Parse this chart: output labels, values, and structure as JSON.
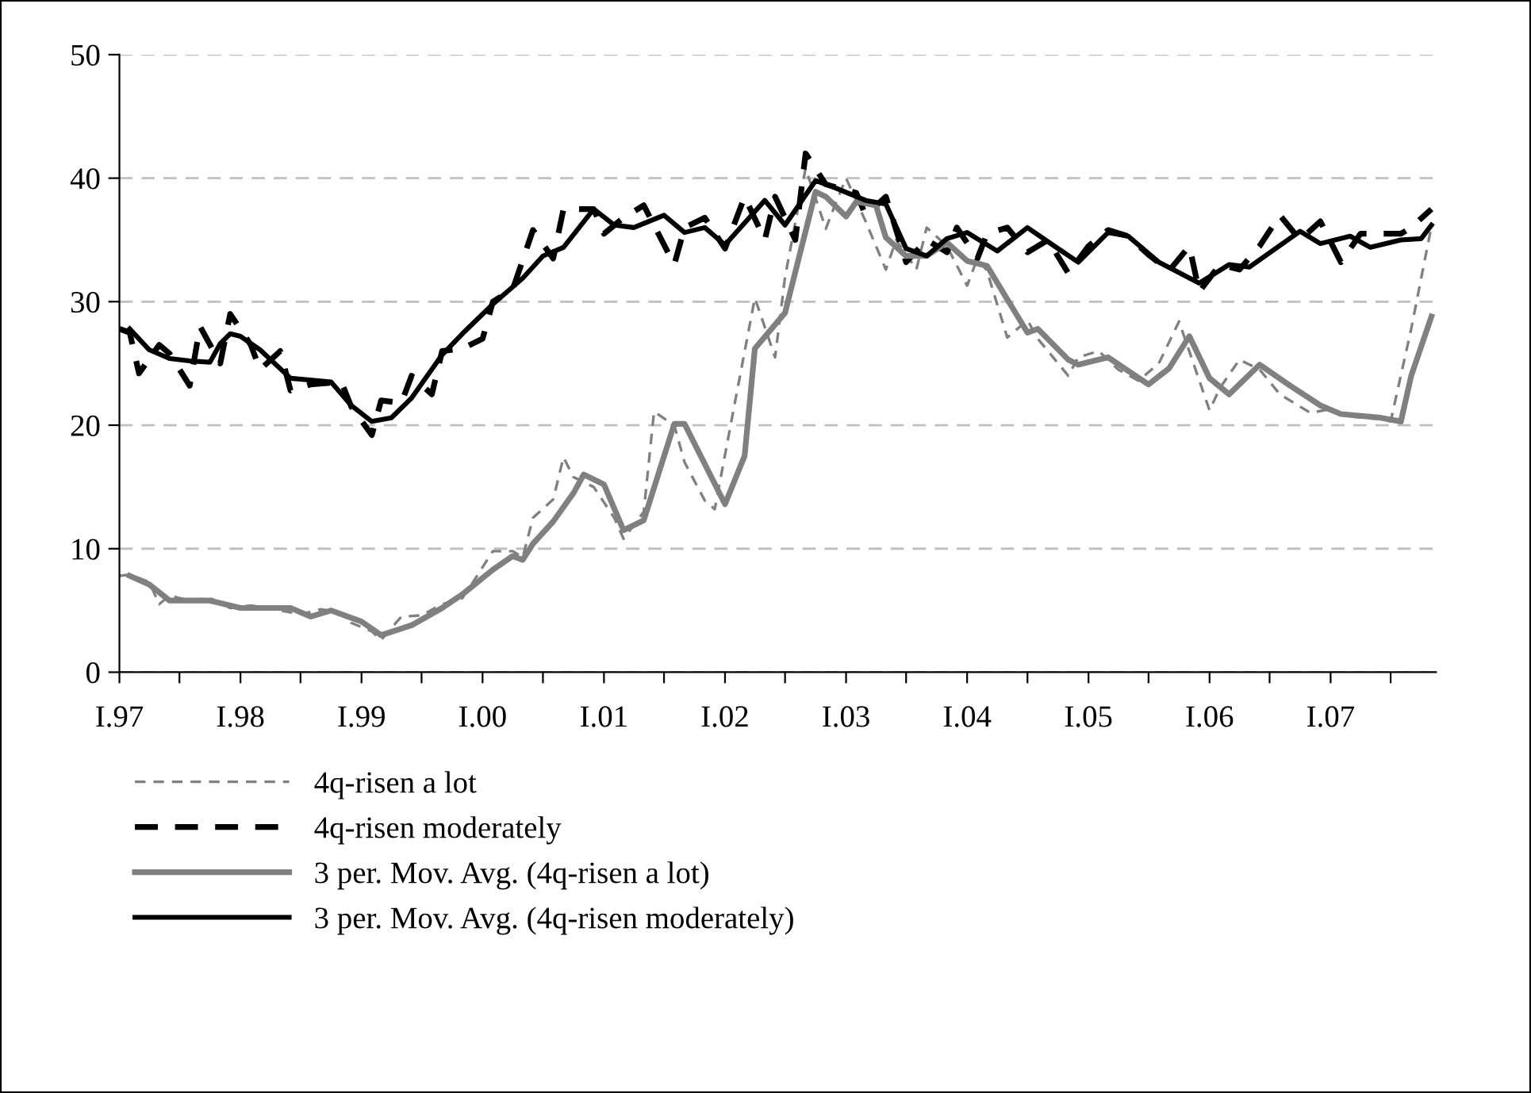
{
  "chart_data": {
    "type": "line",
    "ylim": [
      0,
      50
    ],
    "yticks": [
      0,
      10,
      20,
      30,
      40,
      50
    ],
    "xlim": [
      "1997-01-01",
      "2007-11-15"
    ],
    "xticks": [
      {
        "value": "1997-01",
        "label": "I.97"
      },
      {
        "value": "1997-07",
        "label": null
      },
      {
        "value": "1998-01",
        "label": "I.98"
      },
      {
        "value": "1998-07",
        "label": null
      },
      {
        "value": "1999-01",
        "label": "I.99"
      },
      {
        "value": "1999-07",
        "label": null
      },
      {
        "value": "2000-01",
        "label": "I.00"
      },
      {
        "value": "2000-07",
        "label": null
      },
      {
        "value": "2001-01",
        "label": "I.01"
      },
      {
        "value": "2001-07",
        "label": null
      },
      {
        "value": "2002-01",
        "label": "I.02"
      },
      {
        "value": "2002-07",
        "label": null
      },
      {
        "value": "2003-01",
        "label": "I.03"
      },
      {
        "value": "2003-07",
        "label": null
      },
      {
        "value": "2004-01",
        "label": "I.04"
      },
      {
        "value": "2004-07",
        "label": null
      },
      {
        "value": "2005-01",
        "label": "I.05"
      },
      {
        "value": "2005-07",
        "label": null
      },
      {
        "value": "2006-01",
        "label": "I.06"
      },
      {
        "value": "2006-07",
        "label": null
      },
      {
        "value": "2007-01",
        "label": "I.07"
      },
      {
        "value": "2007-07",
        "label": null
      }
    ],
    "grid": "y",
    "legend": "bottom",
    "series": [
      {
        "name": "4q-risen a lot",
        "color": "#808080",
        "line_style": "dashed",
        "x": [
          "1997-01",
          "1997-02",
          "1997-04",
          "1997-05",
          "1997-06",
          "1997-08",
          "1997-10",
          "1997-12",
          "1998-02",
          "1998-05",
          "1998-07",
          "1998-09",
          "1998-11",
          "1998-12",
          "1999-02",
          "1999-03",
          "1999-05",
          "1999-07",
          "1999-09",
          "1999-11",
          "1999-12",
          "2000-02",
          "2000-04",
          "2000-05",
          "2000-06",
          "2000-08",
          "2000-09",
          "2000-10",
          "2000-12",
          "2001-02",
          "2001-03",
          "2001-05",
          "2001-06",
          "2001-08",
          "2001-09",
          "2001-11",
          "2001-12",
          "2002-02",
          "2002-04",
          "2002-06",
          "2002-07",
          "2002-09",
          "2002-11",
          "2002-12",
          "2003-01",
          "2003-03",
          "2003-05",
          "2003-06",
          "2003-08",
          "2003-09",
          "2003-11",
          "2004-01",
          "2004-02",
          "2004-03",
          "2004-05",
          "2004-07",
          "2004-08",
          "2004-11",
          "2004-12",
          "2005-02",
          "2005-04",
          "2005-06",
          "2005-08",
          "2005-10",
          "2006-01",
          "2006-02",
          "2006-04",
          "2006-06",
          "2006-08",
          "2006-11",
          "2007-01",
          "2007-03",
          "2007-06",
          "2007-07",
          "2007-09",
          "2007-11"
        ],
        "values": [
          7.8,
          7.9,
          7.3,
          5.5,
          6.2,
          5.8,
          6.0,
          5.2,
          5.4,
          5.0,
          4.7,
          5.1,
          4.8,
          4.0,
          3.3,
          2.6,
          4.5,
          4.6,
          5.5,
          6.0,
          7.2,
          9.8,
          9.8,
          9.3,
          12.5,
          14.0,
          17.4,
          15.8,
          15.0,
          12.5,
          10.8,
          13.0,
          21.1,
          20.0,
          17.0,
          13.9,
          13.2,
          22.0,
          30.3,
          25.5,
          32.0,
          40.8,
          35.9,
          38.0,
          40.0,
          36.5,
          32.6,
          35.0,
          32.6,
          36.0,
          34.5,
          31.3,
          33.5,
          32.5,
          27.1,
          28.5,
          27.0,
          24.0,
          25.5,
          26.0,
          24.5,
          23.6,
          25.0,
          28.4,
          21.2,
          23.0,
          25.3,
          24.5,
          22.5,
          21.0,
          21.3,
          20.7,
          20.5,
          20.3,
          27.8,
          36.1
        ]
      },
      {
        "name": "4q-risen moderately",
        "color": "#000000",
        "line_style": "dashed",
        "x": [
          "1997-01",
          "1997-02",
          "1997-03",
          "1997-05",
          "1997-06",
          "1997-08",
          "1997-09",
          "1997-11",
          "1997-12",
          "1998-02",
          "1998-03",
          "1998-05",
          "1998-06",
          "1998-08",
          "1998-11",
          "1998-12",
          "1999-02",
          "1999-03",
          "1999-05",
          "1999-06",
          "1999-08",
          "1999-09",
          "1999-11",
          "2000-01",
          "2000-02",
          "2000-04",
          "2000-06",
          "2000-08",
          "2000-09",
          "2000-12",
          "2001-01",
          "2001-03",
          "2001-05",
          "2001-08",
          "2001-09",
          "2001-11",
          "2002-01",
          "2002-03",
          "2002-05",
          "2002-06",
          "2002-08",
          "2002-09",
          "2002-11",
          "2003-02",
          "2003-03",
          "2003-05",
          "2003-07",
          "2003-09",
          "2003-11",
          "2003-12",
          "2004-02",
          "2004-03",
          "2004-05",
          "2004-07",
          "2004-09",
          "2004-11",
          "2005-01",
          "2005-03",
          "2005-05",
          "2005-07",
          "2005-09",
          "2005-11",
          "2005-12",
          "2006-02",
          "2006-04",
          "2006-06",
          "2006-08",
          "2006-10",
          "2006-12",
          "2007-02",
          "2007-04",
          "2007-06",
          "2007-08",
          "2007-09",
          "2007-11"
        ],
        "values": [
          27.8,
          27.5,
          24.2,
          26.5,
          25.8,
          23.2,
          28.0,
          25.0,
          29.0,
          26.5,
          24.5,
          26.0,
          22.8,
          23.3,
          23.5,
          21.5,
          19.2,
          22.0,
          21.8,
          24.0,
          22.5,
          26.0,
          26.2,
          27.0,
          30.0,
          31.0,
          35.8,
          33.5,
          37.5,
          37.5,
          35.5,
          36.8,
          37.8,
          33.0,
          36.0,
          36.8,
          34.3,
          38.5,
          35.0,
          38.5,
          35.0,
          42.0,
          39.5,
          38.8,
          37.0,
          38.5,
          33.2,
          35.0,
          34.0,
          36.0,
          33.5,
          35.5,
          36.0,
          34.0,
          35.0,
          32.3,
          34.5,
          35.8,
          35.3,
          33.8,
          32.5,
          34.5,
          30.8,
          33.0,
          32.6,
          34.5,
          37.0,
          35.0,
          36.5,
          33.2,
          35.5,
          35.5,
          35.5,
          36.0,
          37.5
        ]
      },
      {
        "name": "3 per. Mov. Avg. (4q-risen a lot)",
        "color": "#808080",
        "line_style": "solid",
        "x": [
          "1997-02",
          "1997-04",
          "1997-06",
          "1997-10",
          "1998-01",
          "1998-06",
          "1998-08",
          "1998-10",
          "1999-01",
          "1999-03",
          "1999-06",
          "1999-09",
          "1999-11",
          "2000-02",
          "2000-04",
          "2000-05",
          "2000-06",
          "2000-08",
          "2000-10",
          "2000-11",
          "2001-01",
          "2001-03",
          "2001-05",
          "2001-08",
          "2001-09",
          "2002-01",
          "2002-03",
          "2002-04",
          "2002-07",
          "2002-10",
          "2002-11",
          "2003-01",
          "2003-02",
          "2003-04",
          "2003-05",
          "2003-07",
          "2003-09",
          "2003-11",
          "2004-01",
          "2004-03",
          "2004-07",
          "2004-08",
          "2004-11",
          "2004-12",
          "2005-03",
          "2005-07",
          "2005-09",
          "2005-11",
          "2006-01",
          "2006-03",
          "2006-06",
          "2006-09",
          "2006-12",
          "2007-02",
          "2007-06",
          "2007-08",
          "2007-09",
          "2007-11"
        ],
        "values": [
          7.8,
          7.1,
          5.8,
          5.8,
          5.2,
          5.2,
          4.5,
          5.0,
          4.1,
          3.0,
          3.8,
          5.2,
          6.3,
          8.3,
          9.4,
          9.1,
          10.4,
          12.2,
          14.5,
          16.0,
          15.2,
          11.5,
          12.3,
          20.1,
          20.1,
          13.6,
          17.5,
          26.2,
          29.1,
          38.9,
          38.5,
          36.9,
          38.1,
          37.8,
          35.2,
          33.7,
          33.7,
          34.8,
          33.3,
          32.9,
          27.5,
          27.8,
          25.3,
          24.9,
          25.5,
          23.3,
          24.6,
          27.2,
          23.8,
          22.5,
          24.9,
          23.2,
          21.6,
          20.9,
          20.6,
          20.3,
          24.0,
          28.8
        ]
      },
      {
        "name": "3 per. Mov. Avg. (4q-risen moderately)",
        "color": "#000000",
        "line_style": "solid",
        "x": [
          "1997-02",
          "1997-04",
          "1997-06",
          "1997-08",
          "1997-10",
          "1997-11",
          "1997-12",
          "1998-01",
          "1998-03",
          "1998-06",
          "1998-10",
          "1998-12",
          "1999-02",
          "1999-04",
          "1999-06",
          "1999-09",
          "1999-11",
          "2000-02",
          "2000-05",
          "2000-07",
          "2000-09",
          "2000-12",
          "2001-02",
          "2001-04",
          "2001-07",
          "2001-09",
          "2001-11",
          "2002-01",
          "2002-05",
          "2002-07",
          "2002-10",
          "2002-12",
          "2003-03",
          "2003-05",
          "2003-07",
          "2003-09",
          "2003-11",
          "2004-01",
          "2004-04",
          "2004-07",
          "2004-10",
          "2004-12",
          "2005-03",
          "2005-05",
          "2005-08",
          "2005-12",
          "2006-03",
          "2006-05",
          "2006-10",
          "2006-12",
          "2007-03",
          "2007-05",
          "2007-08",
          "2007-10",
          "2007-11"
        ],
        "values": [
          27.8,
          26.1,
          25.4,
          25.2,
          25.1,
          26.6,
          27.4,
          27.2,
          26.1,
          23.8,
          23.5,
          21.6,
          20.3,
          20.6,
          22.2,
          25.7,
          27.4,
          29.8,
          31.9,
          33.7,
          34.4,
          37.5,
          36.2,
          36.0,
          37.0,
          35.6,
          36.0,
          34.6,
          38.2,
          36.2,
          39.8,
          39.2,
          38.2,
          37.9,
          34.3,
          33.7,
          35.1,
          35.6,
          34.1,
          36.0,
          34.3,
          33.2,
          35.6,
          35.3,
          33.2,
          31.5,
          33.0,
          32.8,
          35.7,
          34.7,
          35.3,
          34.4,
          35.0,
          35.1,
          36.2
        ]
      }
    ]
  }
}
